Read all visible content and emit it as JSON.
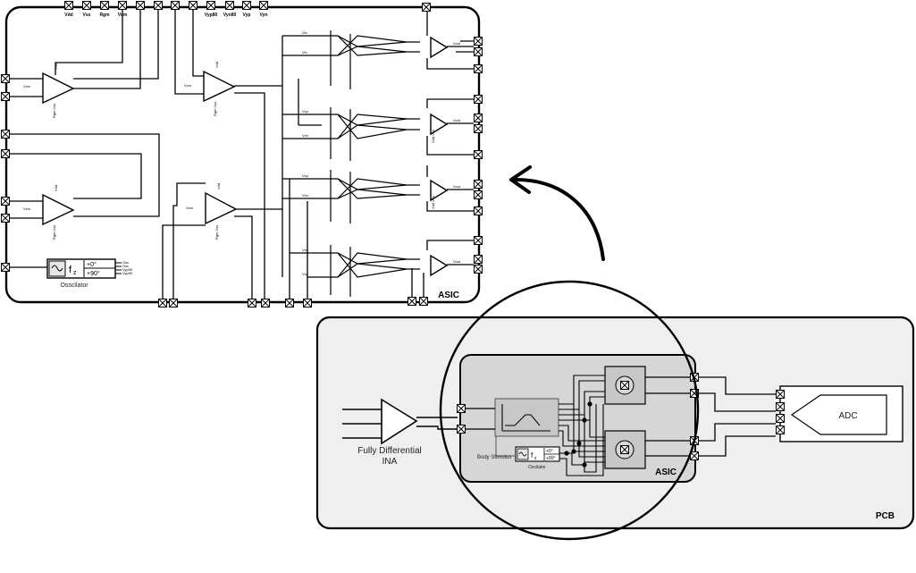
{
  "asic_detail": {
    "title": "ASIC",
    "top_pins": [
      "Vdd",
      "Vss",
      "Rgm",
      "Vcm",
      "Vyp80",
      "Vyn80",
      "Vyp",
      "Vyn"
    ],
    "amp_in_label": "Vcm",
    "amp_top_label": "Vdd",
    "amp_bottom_label": "Rgm Vss",
    "mixer_in_labels": [
      "Vin",
      "Vin",
      "Vxp",
      "Vxn",
      "Vxp",
      "Vxn",
      "Vxn",
      "Vxp"
    ],
    "mixer_out_label": "Vout",
    "buffer_side_label": "Vdd Vss",
    "oscillator": {
      "label": "Osscilator",
      "freq_symbol": "f",
      "freq_sub": "z",
      "phase_0": "+0°",
      "phase_90": "+90°",
      "outputs": [
        "Osc",
        "Osc",
        "Vyp90",
        "Vyp90"
      ]
    }
  },
  "pcb_view": {
    "pcb_label": "PCB",
    "asic_label": "ASIC",
    "ina_label_line1": "Fully Differential",
    "ina_label_line2": "INA",
    "adc_label": "ADC",
    "body_stimulus_label": "Body Stimulus",
    "oscillator_label": "Oscilator",
    "phase_0": "+0°",
    "phase_90": "+90°",
    "freq_symbol": "f",
    "freq_sub": "z"
  },
  "colors": {
    "pcb_fill": "#efefef",
    "asic_fill": "#d6d6d6",
    "block_fill": "#c7c7c7",
    "stroke": "#000000"
  }
}
